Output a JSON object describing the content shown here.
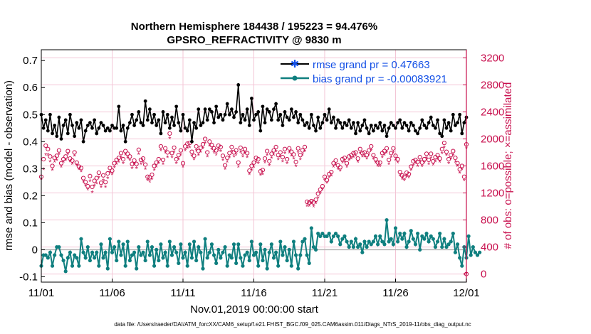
{
  "chart_data": {
    "type": "line",
    "title": "Northern Hemisphere 184438 / 195223 = 94.476%",
    "subtitle": "GPSRO_REFRACTIVITY @ 9830 m",
    "xlabel": "Nov.01,2019 00:00:00 start",
    "ylabel": "rmse and bias (model - observation)",
    "ylabel_right": "# of obs: o=possible; ×=assimilated",
    "xlim": [
      0,
      30
    ],
    "ylim": [
      -0.12,
      0.74
    ],
    "ylim_right": [
      -120,
      3320
    ],
    "x_ticks": [
      0,
      5,
      10,
      15,
      20,
      25,
      30
    ],
    "x_tick_labels": [
      "11/01",
      "11/06",
      "11/11",
      "11/16",
      "11/21",
      "11/26",
      "12/01"
    ],
    "y_ticks": [
      -0.1,
      0,
      0.1,
      0.2,
      0.3,
      0.4,
      0.5,
      0.6,
      0.7
    ],
    "y_tick_labels": [
      "-0.1",
      "0",
      "0.1",
      "0.2",
      "0.3",
      "0.4",
      "0.5",
      "0.6",
      "0.7"
    ],
    "y_right_ticks": [
      0,
      400,
      800,
      1200,
      1600,
      2000,
      2400,
      2800,
      3200
    ],
    "y_right_tick_labels": [
      "0",
      "400",
      "800",
      "1200",
      "1600",
      "2000",
      "2400",
      "2800",
      "3200"
    ],
    "grid": true,
    "legend_position": "top-right",
    "colors": {
      "rmse": "#000000",
      "bias": "#0f7f7f",
      "obs": "#c8104e",
      "legend_text": "#1450e6",
      "zero_line": "#b0b0b0"
    },
    "series": [
      {
        "name": "rmse grand pr = 0.47663",
        "style": "line-star",
        "values": [
          0.5,
          0.45,
          0.48,
          0.44,
          0.5,
          0.43,
          0.46,
          0.42,
          0.49,
          0.41,
          0.46,
          0.48,
          0.43,
          0.5,
          0.46,
          0.42,
          0.47,
          0.45,
          0.48,
          0.4,
          0.44,
          0.46,
          0.47,
          0.45,
          0.48,
          0.43,
          0.45,
          0.47,
          0.46,
          0.44,
          0.45,
          0.44,
          0.46,
          0.45,
          0.45,
          0.53,
          0.44,
          0.46,
          0.4,
          0.45,
          0.47,
          0.5,
          0.46,
          0.48,
          0.51,
          0.47,
          0.46,
          0.55,
          0.48,
          0.52,
          0.47,
          0.5,
          0.46,
          0.48,
          0.43,
          0.51,
          0.47,
          0.5,
          0.45,
          0.49,
          0.46,
          0.53,
          0.47,
          0.44,
          0.5,
          0.45,
          0.44,
          0.48,
          0.4,
          0.47,
          0.45,
          0.52,
          0.46,
          0.47,
          0.52,
          0.48,
          0.52,
          0.51,
          0.47,
          0.53,
          0.49,
          0.5,
          0.48,
          0.5,
          0.54,
          0.5,
          0.52,
          0.49,
          0.51,
          0.61,
          0.47,
          0.5,
          0.48,
          0.52,
          0.46,
          0.56,
          0.48,
          0.5,
          0.51,
          0.44,
          0.53,
          0.47,
          0.52,
          0.51,
          0.48,
          0.52,
          0.54,
          0.48,
          0.5,
          0.46,
          0.51,
          0.49,
          0.48,
          0.52,
          0.49,
          0.51,
          0.47,
          0.5,
          0.48,
          0.46,
          0.47,
          0.45,
          0.5,
          0.46,
          0.44,
          0.49,
          0.45,
          0.47,
          0.5,
          0.48,
          0.52,
          0.47,
          0.49,
          0.45,
          0.48,
          0.47,
          0.45,
          0.47,
          0.46,
          0.48,
          0.45,
          0.47,
          0.43,
          0.47,
          0.44,
          0.46,
          0.48,
          0.45,
          0.43,
          0.46,
          0.44,
          0.46,
          0.45,
          0.47,
          0.44,
          0.46,
          0.42,
          0.45,
          0.47,
          0.46,
          0.45,
          0.47,
          0.48,
          0.45,
          0.47,
          0.46,
          0.44,
          0.47,
          0.46,
          0.44,
          0.43,
          0.45,
          0.48,
          0.46,
          0.45,
          0.47,
          0.49,
          0.46,
          0.45,
          0.48,
          0.43,
          0.42,
          0.48,
          0.45,
          0.47,
          0.44,
          0.5,
          0.46,
          0.47,
          0.5,
          0.43,
          0.47,
          0.49
        ]
      },
      {
        "name": "bias grand pr = -0.00083921",
        "style": "line-circle",
        "values": [
          -0.06,
          -0.02,
          -0.02,
          -0.03,
          -0.01,
          -0.06,
          -0.02,
          0.01,
          0.01,
          -0.02,
          -0.04,
          -0.08,
          -0.03,
          -0.01,
          -0.06,
          -0.02,
          -0.03,
          -0.06,
          0.04,
          -0.01,
          -0.03,
          0.01,
          -0.04,
          -0.01,
          -0.03,
          -0.01,
          -0.06,
          0.02,
          -0.03,
          -0.01,
          -0.07,
          0.04,
          -0.01,
          0.01,
          -0.04,
          0.03,
          -0.02,
          0.02,
          -0.06,
          0.03,
          -0.04,
          -0.02,
          -0.01,
          -0.07,
          0.01,
          -0.02,
          -0.01,
          -0.04,
          0.03,
          -0.02,
          0.01,
          -0.06,
          0.0,
          -0.04,
          0.02,
          -0.03,
          -0.01,
          -0.06,
          0.03,
          -0.02,
          0.01,
          -0.01,
          -0.05,
          0.02,
          -0.03,
          -0.01,
          -0.06,
          0.02,
          -0.03,
          0.03,
          -0.04,
          0.01,
          -0.01,
          -0.07,
          0.04,
          -0.03,
          -0.01,
          0.02,
          -0.02,
          -0.05,
          0.0,
          -0.03,
          -0.01,
          0.01,
          -0.06,
          -0.02,
          -0.03,
          0.02,
          -0.05,
          0.02,
          -0.03,
          -0.06,
          -0.02,
          -0.01,
          -0.04,
          0.03,
          -0.02,
          -0.01,
          -0.06,
          0.02,
          -0.04,
          0.0,
          -0.07,
          -0.01,
          0.02,
          -0.03,
          -0.01,
          -0.06,
          0.03,
          -0.02,
          0.01,
          -0.04,
          0.0,
          -0.06,
          0.03,
          -0.02,
          -0.07,
          -0.02,
          0.03,
          0.04,
          -0.02,
          -0.05,
          0.08,
          0.01,
          0.0,
          0.06,
          0.05,
          0.06,
          0.05,
          0.05,
          0.06,
          0.03,
          0.05,
          0.06,
          0.05,
          0.02,
          0.04,
          0.05,
          0.03,
          0.01,
          0.03,
          0.01,
          0.04,
          0.01,
          0.02,
          -0.01,
          0.03,
          0.01,
          0.03,
          0.02,
          0.03,
          0.05,
          0.02,
          0.05,
          0.03,
          0.02,
          0.11,
          0.03,
          0.04,
          0.02,
          0.08,
          0.03,
          0.06,
          0.04,
          0.06,
          0.01,
          0.03,
          0.07,
          0.04,
          0.02,
          0.06,
          0.0,
          0.05,
          0.04,
          0.06,
          0.03,
          0.05,
          0.04,
          0.01,
          0.03,
          0.06,
          0.01,
          0.04,
          0.01,
          0.02,
          0.03,
          0.06,
          -0.01,
          0.02,
          -0.03,
          -0.06,
          0.01,
          -0.03,
          0.05,
          -0.02,
          0.01,
          -0.01,
          -0.02,
          -0.01
        ]
      },
      {
        "name": "obs possible",
        "axis": "right",
        "style": "circle",
        "values": [
          1440,
          1700,
          1900,
          1850,
          1740,
          1600,
          1720,
          1750,
          1830,
          1640,
          1700,
          1740,
          1820,
          1710,
          1680,
          1800,
          1650,
          1590,
          1570,
          1420,
          1360,
          1300,
          1450,
          1290,
          1380,
          1420,
          1500,
          1350,
          1460,
          1360,
          1490,
          1570,
          1530,
          1640,
          1690,
          1720,
          1790,
          1700,
          1820,
          1780,
          1740,
          1630,
          1680,
          1630,
          1840,
          1690,
          1710,
          1620,
          1440,
          1430,
          1470,
          1600,
          1650,
          1700,
          1890,
          1690,
          1860,
          1800,
          2080,
          1790,
          1870,
          1700,
          1760,
          1830,
          1640,
          1890,
          1930,
          1940,
          1810,
          1750,
          1890,
          1820,
          1870,
          1920,
          2000,
          1800,
          1960,
          1910,
          1860,
          1830,
          1900,
          1880,
          1750,
          1610,
          1720,
          1790,
          1880,
          1800,
          1830,
          1650,
          1870,
          1800,
          1850,
          1790,
          1530,
          1600,
          1650,
          1720,
          1700,
          1520,
          1540,
          1710,
          1820,
          1670,
          1780,
          1830,
          1880,
          1760,
          1800,
          1730,
          1850,
          1700,
          1860,
          1810,
          1770,
          1660,
          1860,
          1760,
          1830,
          1880,
          1070,
          1060,
          1080,
          1060,
          1100,
          1190,
          1250,
          1300,
          1440,
          1390,
          1480,
          1510,
          1640,
          1680,
          1610,
          1580,
          1700,
          1720,
          1640,
          1740,
          1760,
          1790,
          1800,
          1710,
          1850,
          1790,
          1800,
          1760,
          1830,
          1890,
          1760,
          1700,
          1650,
          1650,
          1790,
          1820,
          1860,
          1690,
          1790,
          1860,
          1750,
          1700,
          1510,
          1460,
          1440,
          1500,
          1480,
          1590,
          1670,
          1690,
          1660,
          1730,
          1650,
          1700,
          1780,
          1690,
          1780,
          1670,
          1730,
          1760,
          1710,
          1850,
          1940,
          1810,
          1700,
          1760,
          1820,
          1720,
          1640,
          1550,
          1600,
          1440,
          1920,
          1700,
          1620
        ]
      },
      {
        "name": "obs assimilated",
        "axis": "right",
        "style": "star",
        "values": [
          1400,
          1540,
          1760,
          1760,
          1660,
          1530,
          1650,
          1680,
          1770,
          1580,
          1650,
          1680,
          1770,
          1660,
          1620,
          1740,
          1600,
          1540,
          1510,
          1360,
          1300,
          1240,
          1370,
          1200,
          1300,
          1330,
          1420,
          1280,
          1380,
          1280,
          1410,
          1500,
          1470,
          1570,
          1620,
          1650,
          1720,
          1630,
          1760,
          1710,
          1680,
          1560,
          1610,
          1560,
          1770,
          1620,
          1640,
          1550,
          1380,
          1360,
          1400,
          1530,
          1580,
          1630,
          1820,
          1620,
          1790,
          1720,
          2000,
          1720,
          1800,
          1630,
          1690,
          1760,
          1580,
          1820,
          1860,
          1870,
          1740,
          1690,
          1820,
          1750,
          1800,
          1850,
          1930,
          1730,
          1890,
          1840,
          1790,
          1760,
          1830,
          1810,
          1680,
          1550,
          1650,
          1720,
          1810,
          1730,
          1760,
          1580,
          1800,
          1730,
          1780,
          1720,
          1470,
          1530,
          1580,
          1650,
          1630,
          1460,
          1470,
          1640,
          1750,
          1600,
          1710,
          1760,
          1810,
          1690,
          1730,
          1660,
          1780,
          1630,
          1790,
          1740,
          1700,
          1590,
          1790,
          1690,
          1760,
          1810,
          1000,
          1000,
          1030,
          990,
          1040,
          1120,
          1190,
          1240,
          1380,
          1340,
          1420,
          1450,
          1580,
          1610,
          1550,
          1520,
          1640,
          1650,
          1580,
          1680,
          1700,
          1720,
          1740,
          1650,
          1780,
          1730,
          1730,
          1700,
          1760,
          1820,
          1700,
          1640,
          1590,
          1590,
          1720,
          1760,
          1790,
          1620,
          1720,
          1790,
          1680,
          1640,
          1450,
          1400,
          1380,
          1440,
          1420,
          1530,
          1600,
          1630,
          1590,
          1670,
          1590,
          1640,
          1710,
          1620,
          1710,
          1610,
          1660,
          1690,
          1650,
          1780,
          1870,
          1750,
          1630,
          1700,
          1750,
          1650,
          1590,
          1490,
          1540,
          1380,
          1860,
          1640,
          1560
        ]
      }
    ],
    "last_obs_marker": {
      "x": 30,
      "possible": 0,
      "assimilated": 0
    },
    "footnote": "data file: /Users/raeder/DAI/ATM_forcXX/CAM6_setup/f.e21.FHIST_BGC.f09_025.CAM6assim.011/Diags_NTrS_2019-11/obs_diag_output.nc"
  }
}
